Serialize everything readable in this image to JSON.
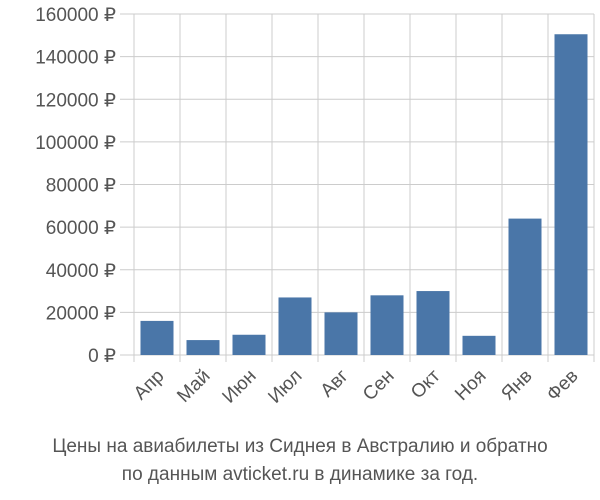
{
  "chart_data": {
    "type": "bar",
    "categories": [
      "Апр",
      "Май",
      "Июн",
      "Июл",
      "Авг",
      "Сен",
      "Окт",
      "Ноя",
      "Янв",
      "Фев"
    ],
    "values": [
      16000,
      7000,
      9500,
      27000,
      20000,
      28000,
      30000,
      9000,
      64000,
      150500
    ],
    "ylim": [
      0,
      160000
    ],
    "yticks": [
      0,
      20000,
      40000,
      60000,
      80000,
      100000,
      120000,
      140000,
      160000
    ],
    "ytick_labels": [
      "0 ₽",
      "20000 ₽",
      "40000 ₽",
      "60000 ₽",
      "80000 ₽",
      "100000 ₽",
      "120000 ₽",
      "140000 ₽",
      "160000 ₽"
    ],
    "bar_color": "#4a76a8",
    "grid_color": "#cccccc",
    "grid": true,
    "xlabel_rotation_deg": -45
  },
  "caption": {
    "line1": "Цены на авиабилеты из Сиднея в Австралию и обратно",
    "line2": "по данным avticket.ru в динамике за год."
  }
}
